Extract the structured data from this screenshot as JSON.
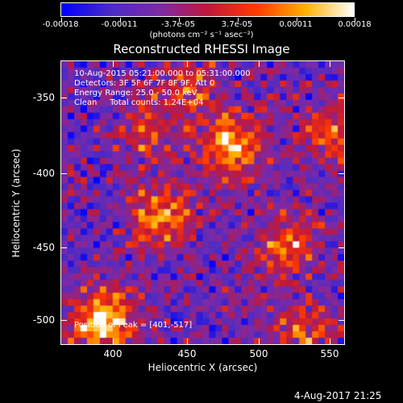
{
  "colorbar": {
    "ticks": [
      "-0.00018",
      "-0.00011",
      "-3.7e-05",
      "3.7e-05",
      "0.00011",
      "0.00018"
    ],
    "units": "(photons cm⁻² s⁻¹ asec⁻²)",
    "colors": [
      "#0000ff",
      "#4b2bc6",
      "#7b2aa8",
      "#c0183b",
      "#ff3a00",
      "#ffb000",
      "#ffffff"
    ]
  },
  "title": "Reconstructed RHESSI Image",
  "annotations": {
    "line1": "10-Aug-2015 05:21:00.000 to 05:31:00.000",
    "line2": "Detectors: 3F 5F 6F 7F 8F 9F, Att 0",
    "line3": "Energy Range: 25.0 - 50.0 keV",
    "line4": "Clean     Total counts: 1.24E+04",
    "peak": "Position of Peak = [401,-517]"
  },
  "axes": {
    "xlabel": "Heliocentric X (arcsec)",
    "ylabel": "Heliocentric Y (arcsec)",
    "xticks": [
      "400",
      "450",
      "500",
      "550"
    ],
    "yticks": [
      "-350",
      "-400",
      "-450",
      "-500"
    ]
  },
  "footer": "4-Aug-2017 21:25"
}
